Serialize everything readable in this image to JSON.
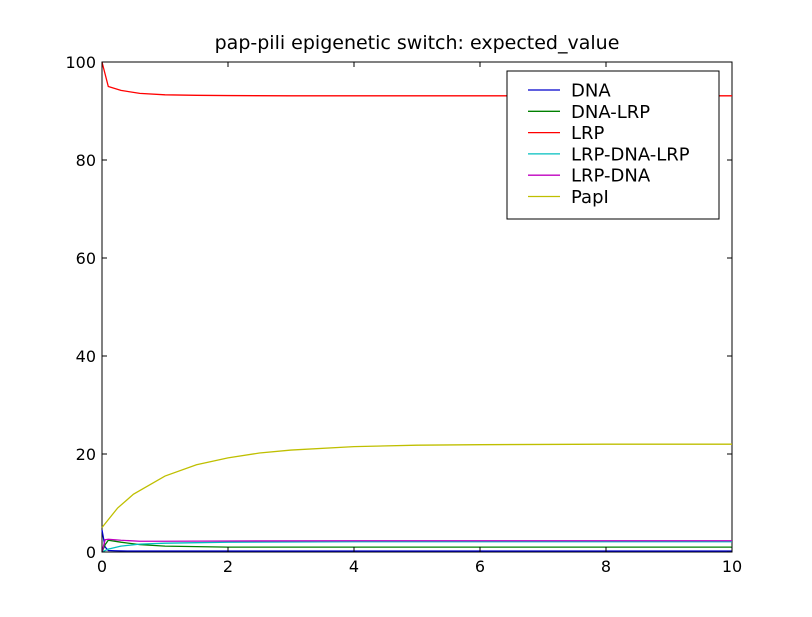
{
  "chart_data": {
    "type": "line",
    "title": "pap-pili epigenetic switch: expected_value",
    "xlabel": "",
    "ylabel": "",
    "xlim": [
      0,
      10
    ],
    "ylim": [
      0,
      100
    ],
    "xticks": [
      "0",
      "2",
      "4",
      "6",
      "8",
      "10"
    ],
    "yticks": [
      "0",
      "20",
      "40",
      "60",
      "80",
      "100"
    ],
    "grid": false,
    "legend_position": "top-right",
    "series": [
      {
        "name": "DNA",
        "color": "#0000cc",
        "x": [
          0,
          0.05,
          0.1,
          0.2,
          0.4,
          1,
          2,
          4,
          6,
          8,
          10
        ],
        "y": [
          4.5,
          1.0,
          0.3,
          0.25,
          0.2,
          0.2,
          0.2,
          0.2,
          0.2,
          0.2,
          0.2
        ]
      },
      {
        "name": "DNA-LRP",
        "color": "#008000",
        "x": [
          0,
          0.05,
          0.1,
          0.3,
          0.6,
          1,
          2,
          4,
          6,
          8,
          10
        ],
        "y": [
          0.0,
          1.5,
          2.4,
          2.0,
          1.5,
          1.2,
          1.0,
          1.0,
          1.0,
          1.0,
          1.0
        ]
      },
      {
        "name": "LRP",
        "color": "#ff0000",
        "x": [
          0,
          0.1,
          0.3,
          0.6,
          1,
          1.5,
          2,
          3,
          4,
          6,
          8,
          10
        ],
        "y": [
          100,
          95.0,
          94.2,
          93.6,
          93.3,
          93.2,
          93.15,
          93.1,
          93.1,
          93.1,
          93.1,
          93.1
        ]
      },
      {
        "name": "LRP-DNA-LRP",
        "color": "#00bfbf",
        "x": [
          0,
          0.1,
          0.3,
          0.6,
          1,
          2,
          4,
          6,
          8,
          10
        ],
        "y": [
          0.0,
          0.6,
          1.2,
          1.6,
          1.8,
          2.0,
          2.1,
          2.1,
          2.1,
          2.1
        ]
      },
      {
        "name": "LRP-DNA",
        "color": "#bf00bf",
        "x": [
          0,
          0.05,
          0.1,
          0.3,
          0.6,
          1,
          2,
          4,
          6,
          8,
          10
        ],
        "y": [
          0.0,
          2.5,
          2.6,
          2.4,
          2.2,
          2.2,
          2.25,
          2.3,
          2.3,
          2.3,
          2.3
        ]
      },
      {
        "name": "PapI",
        "color": "#bfbf00",
        "x": [
          0,
          0.25,
          0.5,
          1,
          1.5,
          2,
          2.5,
          3,
          4,
          5,
          6,
          7,
          8,
          9,
          10
        ],
        "y": [
          5.0,
          9.0,
          11.8,
          15.5,
          17.8,
          19.2,
          20.2,
          20.8,
          21.5,
          21.8,
          21.9,
          21.95,
          22.0,
          22.0,
          22.0
        ]
      }
    ]
  }
}
